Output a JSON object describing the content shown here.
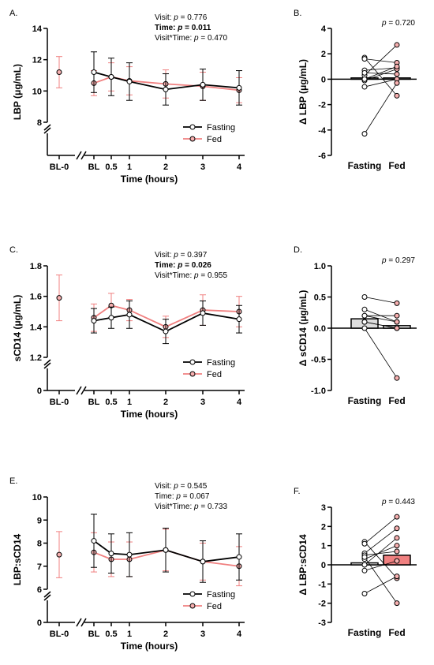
{
  "colors": {
    "fasting": "#000000",
    "fed": "#f08080",
    "fed_bar": "#f08080"
  },
  "line_x_labels": [
    "BL-0",
    "BL",
    "0.5",
    "1",
    "2",
    "3",
    "4"
  ],
  "line_x_title": "Time (hours)",
  "legend": [
    "Fasting",
    "Fed"
  ],
  "bar_categories": [
    "Fasting",
    "Fed"
  ],
  "chart_data": [
    {
      "type": "line",
      "panel": "A.",
      "ylabel": "LBP (μg/mL)",
      "ylim": [
        8,
        14
      ],
      "yticks": [
        "8",
        "10",
        "12",
        "14"
      ],
      "axis_break": true,
      "break_zero": false,
      "stats": [
        {
          "pre": "Visit: ",
          "p": "p",
          "post": " = 0.776",
          "bold": false
        },
        {
          "pre": "Time: ",
          "p": "p",
          "post": " = 0.011",
          "bold": true
        },
        {
          "pre": "Visit*Time: ",
          "p": "p",
          "post": " = 0.470",
          "bold": false
        }
      ],
      "series": [
        {
          "name": "Fasting",
          "x": [
            "BL",
            "0.5",
            "1",
            "2",
            "3",
            "4"
          ],
          "y": [
            11.2,
            10.9,
            10.6,
            10.1,
            10.4,
            10.2
          ],
          "err": [
            1.3,
            1.2,
            1.2,
            1.0,
            1.0,
            1.1
          ]
        },
        {
          "name": "Fed",
          "x": [
            "BL-0",
            "BL",
            "0.5",
            "1",
            "2",
            "3",
            "4"
          ],
          "y": [
            11.2,
            10.5,
            10.9,
            10.65,
            10.45,
            10.3,
            10.05
          ],
          "err": [
            1.0,
            0.8,
            0.9,
            0.9,
            0.9,
            0.9,
            0.8
          ]
        }
      ]
    },
    {
      "type": "bar-paired",
      "panel": "B.",
      "ylabel": "Δ LBP (μg/mL)",
      "ylim": [
        -6,
        4
      ],
      "yticks": [
        "-6",
        "-4",
        "-2",
        "0",
        "2",
        "4"
      ],
      "stat": {
        "p": "p",
        "post": " = 0.720"
      },
      "bar_values": [
        0.1,
        0.1
      ],
      "bar_fill": [
        "#ffffff",
        "#ffffff"
      ],
      "pairs": [
        [
          1.7,
          -1.3
        ],
        [
          1.6,
          1.3
        ],
        [
          0.7,
          0.9
        ],
        [
          0.3,
          2.7
        ],
        [
          -0.1,
          0.8
        ],
        [
          -0.6,
          0.0
        ],
        [
          -4.3,
          -0.3
        ],
        [
          0.5,
          0.4
        ],
        [
          0.0,
          1.0
        ]
      ]
    },
    {
      "type": "line",
      "panel": "C.",
      "ylabel": "sCD14 (μg/mL)",
      "ylim": [
        1.2,
        1.8
      ],
      "yticks": [
        "0",
        "1.2",
        "1.4",
        "1.6",
        "1.8"
      ],
      "axis_break": true,
      "break_zero": true,
      "stats": [
        {
          "pre": "Visit: ",
          "p": "p",
          "post": " = 0.397",
          "bold": false
        },
        {
          "pre": "Time: ",
          "p": "p",
          "post": " = 0.026",
          "bold": true
        },
        {
          "pre": "Visit*Time: ",
          "p": "p",
          "post": " = 0.955",
          "bold": false
        }
      ],
      "series": [
        {
          "name": "Fasting",
          "x": [
            "BL",
            "0.5",
            "1",
            "2",
            "3",
            "4"
          ],
          "y": [
            1.44,
            1.46,
            1.48,
            1.37,
            1.49,
            1.45
          ],
          "err": [
            0.08,
            0.07,
            0.09,
            0.08,
            0.08,
            0.09
          ]
        },
        {
          "name": "Fed",
          "x": [
            "BL-0",
            "BL",
            "0.5",
            "1",
            "2",
            "3",
            "4"
          ],
          "y": [
            1.59,
            1.46,
            1.54,
            1.51,
            1.4,
            1.51,
            1.5
          ],
          "err": [
            0.15,
            0.09,
            0.08,
            0.07,
            0.07,
            0.1,
            0.1
          ]
        }
      ]
    },
    {
      "type": "bar-paired",
      "panel": "D.",
      "ylabel": "Δ sCD14 (μg/mL)",
      "ylim": [
        -1.0,
        1.0
      ],
      "yticks": [
        "-1.0",
        "-0.5",
        "0.0",
        "0.5",
        "1.0"
      ],
      "stat": {
        "p": "p",
        "post": " = 0.297"
      },
      "bar_values": [
        0.15,
        0.04
      ],
      "bar_fill": [
        "#dddddd",
        "#ffffff"
      ],
      "pairs": [
        [
          0.5,
          0.4
        ],
        [
          0.3,
          0.1
        ],
        [
          0.2,
          0.2
        ],
        [
          0.1,
          0.0
        ],
        [
          0.1,
          0.0
        ],
        [
          0.0,
          -0.8
        ],
        [
          0.2,
          0.1
        ]
      ]
    },
    {
      "type": "line",
      "panel": "E.",
      "ylabel": "LBP:sCD14",
      "ylim": [
        6,
        10
      ],
      "yticks": [
        "0",
        "6",
        "7",
        "8",
        "9",
        "10"
      ],
      "axis_break": true,
      "break_zero": true,
      "stats": [
        {
          "pre": "Visit: ",
          "p": "p",
          "post": " = 0.545",
          "bold": false
        },
        {
          "pre": "Time: ",
          "p": "p",
          "post": " = 0.067",
          "bold": false
        },
        {
          "pre": "Visit*Time: ",
          "p": "p",
          "post": " = 0.733",
          "bold": false
        }
      ],
      "series": [
        {
          "name": "Fasting",
          "x": [
            "BL",
            "0.5",
            "1",
            "2",
            "3",
            "4"
          ],
          "y": [
            8.1,
            7.55,
            7.5,
            7.7,
            7.2,
            7.4
          ],
          "err": [
            1.15,
            0.85,
            0.95,
            0.95,
            0.9,
            1.0
          ]
        },
        {
          "name": "Fed",
          "x": [
            "BL-0",
            "BL",
            "0.5",
            "1",
            "2",
            "3",
            "4"
          ],
          "y": [
            7.5,
            7.6,
            7.3,
            7.3,
            7.7,
            7.2,
            7.0
          ],
          "err": [
            1.0,
            0.85,
            0.75,
            0.75,
            0.9,
            0.8,
            0.85
          ]
        }
      ]
    },
    {
      "type": "bar-paired",
      "panel": "F.",
      "ylabel": "Δ LBP:sCD14",
      "ylim": [
        -3,
        3
      ],
      "yticks": [
        "-3",
        "-2",
        "-1",
        "0",
        "1",
        "2",
        "3"
      ],
      "stat": {
        "p": "p",
        "post": " = 0.443"
      },
      "bar_values": [
        0.1,
        0.5
      ],
      "bar_fill": [
        "#ffffff",
        "#f08080"
      ],
      "pairs": [
        [
          1.2,
          -0.7
        ],
        [
          1.1,
          2.5
        ],
        [
          0.6,
          1.9
        ],
        [
          0.5,
          0.7
        ],
        [
          0.3,
          1.0
        ],
        [
          -0.3,
          0.2
        ],
        [
          -1.5,
          -0.6
        ],
        [
          0.4,
          -2.0
        ],
        [
          0.0,
          1.4
        ]
      ]
    }
  ]
}
